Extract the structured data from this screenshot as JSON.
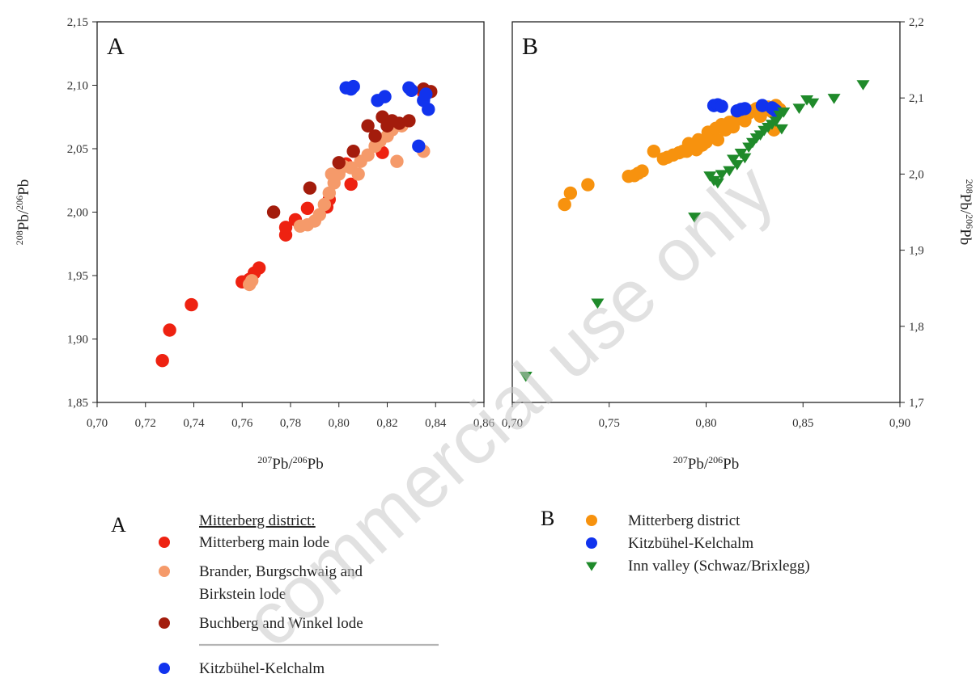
{
  "watermark": "commercial use only",
  "chart_data": [
    {
      "type": "scatter",
      "panel": "A",
      "xlabel": {
        "iso_top": "207",
        "el_top": "Pb",
        "iso_bot": "206",
        "el_bot": "Pb"
      },
      "ylabel": {
        "iso_top": "208",
        "el_top": "Pb",
        "iso_bot": "206",
        "el_bot": "Pb"
      },
      "xlim": [
        0.7,
        0.86
      ],
      "ylim": [
        1.85,
        2.15
      ],
      "xticks": [
        0.7,
        0.72,
        0.74,
        0.76,
        0.78,
        0.8,
        0.82,
        0.84,
        0.86
      ],
      "yticks": [
        1.85,
        1.9,
        1.95,
        2.0,
        2.05,
        2.1,
        2.15
      ],
      "xtick_labels": [
        "0,70",
        "0,72",
        "0,74",
        "0,76",
        "0,78",
        "0,80",
        "0,82",
        "0,84",
        "0,86"
      ],
      "ytick_labels": [
        "1,85",
        "1,90",
        "1,95",
        "2,00",
        "2,05",
        "2,10",
        "2,15"
      ],
      "grid": false,
      "series": [
        {
          "name": "Mitterberg main lode",
          "color": "#ee2211",
          "marker": "circle",
          "points": [
            [
              0.727,
              1.883
            ],
            [
              0.73,
              1.907
            ],
            [
              0.739,
              1.927
            ],
            [
              0.76,
              1.945
            ],
            [
              0.763,
              1.947
            ],
            [
              0.765,
              1.952
            ],
            [
              0.767,
              1.956
            ],
            [
              0.778,
              1.982
            ],
            [
              0.778,
              1.988
            ],
            [
              0.782,
              1.994
            ],
            [
              0.787,
              2.003
            ],
            [
              0.795,
              2.004
            ],
            [
              0.796,
              2.01
            ],
            [
              0.803,
              2.038
            ],
            [
              0.805,
              2.022
            ],
            [
              0.818,
              2.047
            ],
            [
              0.822,
              2.065
            ],
            [
              0.835,
              2.094
            ]
          ]
        },
        {
          "name": "Brander, Burgschwaig and Birkstein lode",
          "color": "#f59a6a",
          "marker": "circle",
          "points": [
            [
              0.763,
              1.943
            ],
            [
              0.764,
              1.946
            ],
            [
              0.784,
              1.989
            ],
            [
              0.787,
              1.99
            ],
            [
              0.79,
              1.993
            ],
            [
              0.792,
              1.998
            ],
            [
              0.794,
              2.006
            ],
            [
              0.796,
              2.015
            ],
            [
              0.798,
              2.023
            ],
            [
              0.797,
              2.03
            ],
            [
              0.8,
              2.03
            ],
            [
              0.802,
              2.036
            ],
            [
              0.805,
              2.035
            ],
            [
              0.808,
              2.03
            ],
            [
              0.809,
              2.04
            ],
            [
              0.812,
              2.045
            ],
            [
              0.815,
              2.052
            ],
            [
              0.817,
              2.056
            ],
            [
              0.82,
              2.06
            ],
            [
              0.822,
              2.065
            ],
            [
              0.824,
              2.04
            ],
            [
              0.826,
              2.068
            ],
            [
              0.835,
              2.048
            ]
          ]
        },
        {
          "name": "Buchberg and Winkel lode",
          "color": "#a31c0c",
          "marker": "circle",
          "points": [
            [
              0.773,
              2.0
            ],
            [
              0.788,
              2.019
            ],
            [
              0.8,
              2.039
            ],
            [
              0.806,
              2.048
            ],
            [
              0.812,
              2.068
            ],
            [
              0.815,
              2.06
            ],
            [
              0.818,
              2.075
            ],
            [
              0.82,
              2.068
            ],
            [
              0.822,
              2.072
            ],
            [
              0.825,
              2.07
            ],
            [
              0.829,
              2.072
            ],
            [
              0.835,
              2.097
            ],
            [
              0.838,
              2.095
            ]
          ]
        },
        {
          "name": "Kitzbühel-Kelchalm",
          "color": "#1133ee",
          "marker": "circle",
          "points": [
            [
              0.803,
              2.098
            ],
            [
              0.805,
              2.097
            ],
            [
              0.806,
              2.099
            ],
            [
              0.816,
              2.088
            ],
            [
              0.819,
              2.091
            ],
            [
              0.829,
              2.098
            ],
            [
              0.83,
              2.096
            ],
            [
              0.833,
              2.052
            ],
            [
              0.835,
              2.088
            ],
            [
              0.836,
              2.093
            ],
            [
              0.837,
              2.081
            ]
          ]
        }
      ]
    },
    {
      "type": "scatter",
      "panel": "B",
      "xlabel": {
        "iso_top": "207",
        "el_top": "Pb",
        "iso_bot": "206",
        "el_bot": "Pb"
      },
      "ylabel": {
        "iso_top": "208",
        "el_top": "Pb",
        "iso_bot": "206",
        "el_bot": "Pb"
      },
      "xlim": [
        0.7,
        0.9
      ],
      "ylim": [
        1.7,
        2.2
      ],
      "xticks": [
        0.7,
        0.75,
        0.8,
        0.85,
        0.9
      ],
      "yticks": [
        1.7,
        1.8,
        1.9,
        2.0,
        2.1,
        2.2
      ],
      "xtick_labels": [
        "0,70",
        "0,75",
        "0,80",
        "0,85",
        "0,90"
      ],
      "ytick_labels": [
        "1,7",
        "1,8",
        "1,9",
        "2,0",
        "2,1",
        "2,2"
      ],
      "grid": false,
      "series": [
        {
          "name": "Mitterberg district",
          "color": "#f7920e",
          "marker": "circle",
          "points": [
            [
              0.727,
              1.96
            ],
            [
              0.73,
              1.975
            ],
            [
              0.739,
              1.986
            ],
            [
              0.76,
              1.997
            ],
            [
              0.763,
              1.998
            ],
            [
              0.765,
              2.001
            ],
            [
              0.767,
              2.004
            ],
            [
              0.773,
              2.03
            ],
            [
              0.778,
              2.02
            ],
            [
              0.78,
              2.022
            ],
            [
              0.783,
              2.025
            ],
            [
              0.786,
              2.028
            ],
            [
              0.788,
              2.03
            ],
            [
              0.79,
              2.03
            ],
            [
              0.791,
              2.04
            ],
            [
              0.793,
              2.035
            ],
            [
              0.795,
              2.032
            ],
            [
              0.796,
              2.045
            ],
            [
              0.798,
              2.038
            ],
            [
              0.8,
              2.042
            ],
            [
              0.801,
              2.055
            ],
            [
              0.803,
              2.05
            ],
            [
              0.805,
              2.06
            ],
            [
              0.806,
              2.045
            ],
            [
              0.808,
              2.065
            ],
            [
              0.81,
              2.058
            ],
            [
              0.812,
              2.068
            ],
            [
              0.814,
              2.062
            ],
            [
              0.816,
              2.072
            ],
            [
              0.818,
              2.078
            ],
            [
              0.82,
              2.07
            ],
            [
              0.822,
              2.08
            ],
            [
              0.824,
              2.083
            ],
            [
              0.826,
              2.086
            ],
            [
              0.828,
              2.076
            ],
            [
              0.83,
              2.084
            ],
            [
              0.832,
              2.088
            ],
            [
              0.834,
              2.082
            ],
            [
              0.836,
              2.09
            ],
            [
              0.835,
              2.058
            ],
            [
              0.838,
              2.085
            ]
          ]
        },
        {
          "name": "Kitzbühel-Kelchalm",
          "color": "#1133ee",
          "marker": "circle",
          "points": [
            [
              0.804,
              2.09
            ],
            [
              0.806,
              2.091
            ],
            [
              0.808,
              2.089
            ],
            [
              0.816,
              2.083
            ],
            [
              0.818,
              2.085
            ],
            [
              0.82,
              2.086
            ],
            [
              0.829,
              2.09
            ],
            [
              0.834,
              2.087
            ],
            [
              0.835,
              2.085
            ],
            [
              0.836,
              2.083
            ]
          ]
        },
        {
          "name": "Inn valley (Schwaz/Brixlegg)",
          "color": "#1f8a2a",
          "marker": "triangle-down",
          "points": [
            [
              0.707,
              1.735
            ],
            [
              0.744,
              1.831
            ],
            [
              0.794,
              1.944
            ],
            [
              0.802,
              1.998
            ],
            [
              0.804,
              1.992
            ],
            [
              0.806,
              1.989
            ],
            [
              0.808,
              2.0
            ],
            [
              0.812,
              2.005
            ],
            [
              0.814,
              2.02
            ],
            [
              0.816,
              2.013
            ],
            [
              0.818,
              2.028
            ],
            [
              0.82,
              2.022
            ],
            [
              0.822,
              2.036
            ],
            [
              0.824,
              2.042
            ],
            [
              0.826,
              2.048
            ],
            [
              0.828,
              2.052
            ],
            [
              0.83,
              2.058
            ],
            [
              0.832,
              2.062
            ],
            [
              0.834,
              2.066
            ],
            [
              0.836,
              2.07
            ],
            [
              0.838,
              2.078
            ],
            [
              0.839,
              2.06
            ],
            [
              0.84,
              2.082
            ],
            [
              0.848,
              2.087
            ],
            [
              0.852,
              2.098
            ],
            [
              0.855,
              2.094
            ],
            [
              0.866,
              2.1
            ],
            [
              0.881,
              2.118
            ]
          ]
        }
      ]
    }
  ],
  "legend": {
    "A": {
      "letter": "A",
      "heading": "Mitterberg district:",
      "items": [
        {
          "lines": [
            "Mitterberg main lode"
          ],
          "color": "#ee2211",
          "marker": "circle"
        },
        {
          "lines": [
            "Brander, Burgschwaig and",
            "Birkstein lode"
          ],
          "color": "#f59a6a",
          "marker": "circle"
        },
        {
          "lines": [
            "Buchberg and Winkel lode"
          ],
          "color": "#a31c0c",
          "marker": "circle"
        }
      ],
      "after_divider": [
        {
          "lines": [
            "Kitzbühel-Kelchalm"
          ],
          "color": "#1133ee",
          "marker": "circle"
        }
      ]
    },
    "B": {
      "letter": "B",
      "items": [
        {
          "lines": [
            "Mitterberg district"
          ],
          "color": "#f7920e",
          "marker": "circle"
        },
        {
          "lines": [
            "Kitzbühel-Kelchalm"
          ],
          "color": "#1133ee",
          "marker": "circle"
        },
        {
          "lines": [
            "Inn valley (Schwaz/Brixlegg)"
          ],
          "color": "#1f8a2a",
          "marker": "triangle-down"
        }
      ]
    }
  }
}
